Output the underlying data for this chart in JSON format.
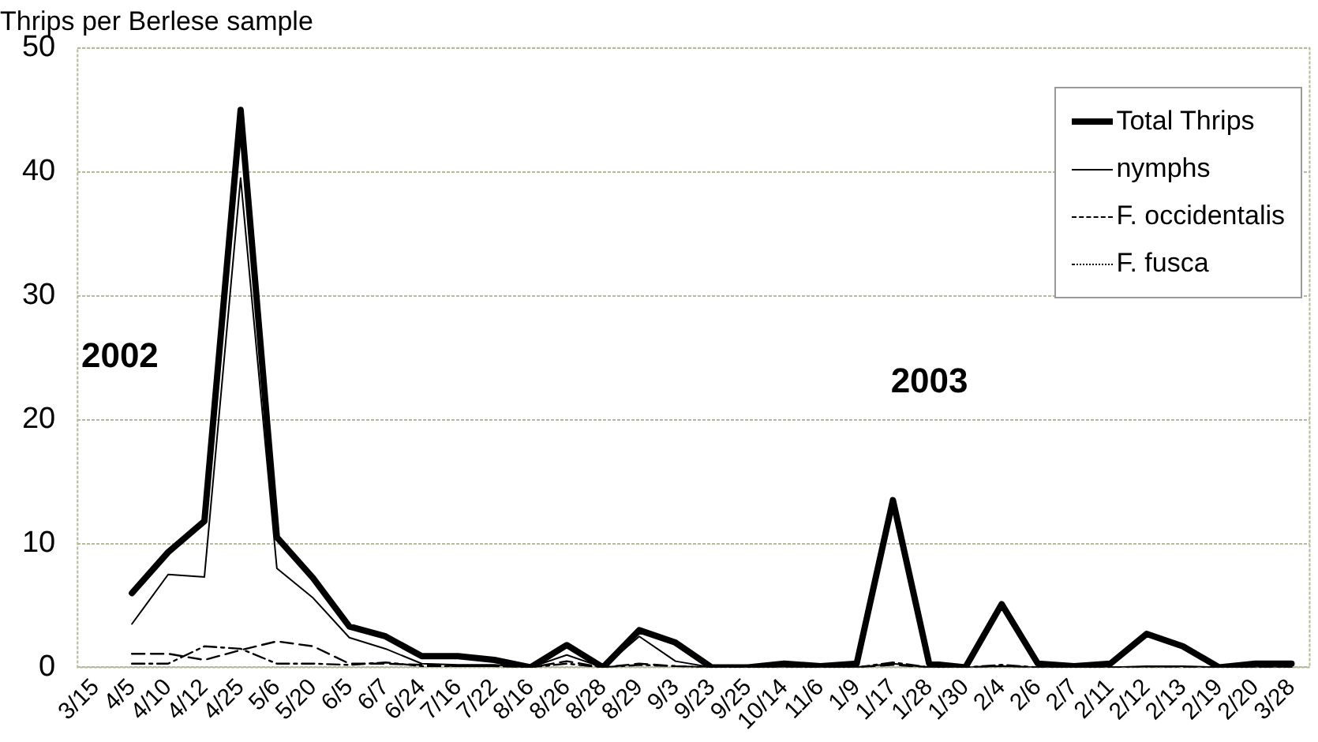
{
  "chart_data": {
    "type": "line",
    "title": "Thrips per Berlese sample",
    "categories": [
      "3/15",
      "4/5",
      "4/10",
      "4/12",
      "4/25",
      "5/6",
      "5/20",
      "6/5",
      "6/7",
      "6/24",
      "7/16",
      "7/22",
      "8/16",
      "8/26",
      "8/28",
      "8/29",
      "9/3",
      "9/23",
      "9/25",
      "10/14",
      "11/6",
      "1/9",
      "1/17",
      "1/28",
      "1/30",
      "2/4",
      "2/6",
      "2/7",
      "2/11",
      "2/12",
      "2/13",
      "2/19",
      "2/20",
      "3/28"
    ],
    "series": [
      {
        "name": "Total Thrips",
        "color": "#000000",
        "line_style": "solid",
        "values": [
          null,
          6.0,
          9.3,
          11.8,
          45,
          10.5,
          7.2,
          3.3,
          2.5,
          0.9,
          0.9,
          0.6,
          0,
          1.8,
          0,
          3.0,
          2.0,
          0,
          0,
          0.3,
          0.1,
          0.3,
          13.5,
          0.3,
          0,
          5.1,
          0.3,
          0.1,
          0.3,
          2.7,
          1.7,
          0,
          0.3,
          0.3
        ]
      },
      {
        "name": "nymphs",
        "color": "#000000",
        "line_style": "solid",
        "values": [
          null,
          3.5,
          7.5,
          7.3,
          39.5,
          8.0,
          5.6,
          2.4,
          1.5,
          0.3,
          0.2,
          0.2,
          0,
          1.0,
          0,
          2.5,
          0.5,
          0,
          0,
          0.1,
          0,
          0,
          0.3,
          0,
          0,
          0.1,
          0,
          0,
          0,
          0.1,
          0.1,
          0,
          0,
          0
        ]
      },
      {
        "name": "F. occidentalis",
        "color": "#000000",
        "line_style": "dashed",
        "values": [
          null,
          1.1,
          1.1,
          0.6,
          1.4,
          2.1,
          1.7,
          0.3,
          0.3,
          0.2,
          0.1,
          0.1,
          0,
          0.5,
          0,
          0.3,
          0.1,
          0,
          0,
          0,
          0,
          0,
          0.2,
          0,
          0,
          0.1,
          0,
          0,
          0,
          0,
          0,
          0,
          0,
          0
        ]
      },
      {
        "name": "F. fusca",
        "color": "#000000",
        "line_style": "dotted",
        "values": [
          null,
          0.3,
          0.3,
          1.7,
          1.5,
          0.3,
          0.3,
          0.2,
          0.4,
          0.1,
          0.1,
          0.1,
          0,
          0.3,
          0,
          0.2,
          0.1,
          0,
          0,
          0,
          0,
          0,
          0.4,
          0,
          0,
          0.2,
          0,
          0,
          0,
          0,
          0,
          0,
          0,
          0
        ]
      }
    ],
    "ylim": [
      0,
      50
    ],
    "yticks": [
      0,
      10,
      20,
      30,
      40,
      50
    ],
    "grid": "y",
    "legend": "top right",
    "marker": "none",
    "annotations": [
      "2002",
      "2003"
    ]
  }
}
